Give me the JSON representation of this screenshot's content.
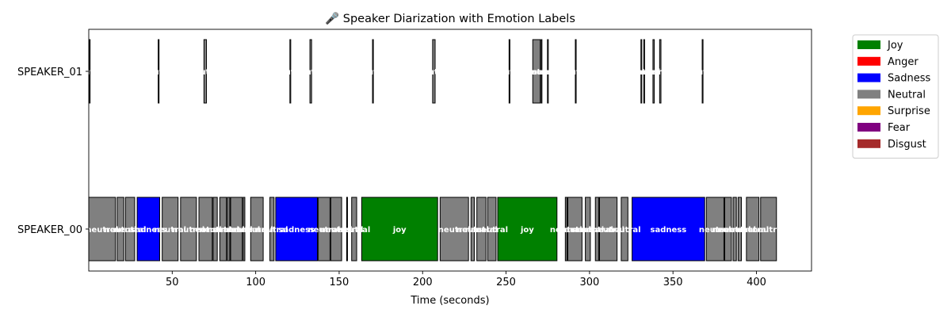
{
  "chart_data": {
    "type": "gantt",
    "title": "🎤 Speaker Diarization with Emotion Labels",
    "xlabel": "Time (seconds)",
    "ylabel": "",
    "xlim": [
      0,
      433
    ],
    "x_ticks": [
      50,
      100,
      150,
      200,
      250,
      300,
      350,
      400
    ],
    "categories": [
      "SPEAKER_00",
      "SPEAKER_01"
    ],
    "legend": {
      "placement": "outside-top-right",
      "items": [
        {
          "label": "Joy",
          "color": "#008000"
        },
        {
          "label": "Anger",
          "color": "#ff0000"
        },
        {
          "label": "Sadness",
          "color": "#0000ff"
        },
        {
          "label": "Neutral",
          "color": "#808080"
        },
        {
          "label": "Surprise",
          "color": "#ffa500"
        },
        {
          "label": "Fear",
          "color": "#800080"
        },
        {
          "label": "Disgust",
          "color": "#a52a2a"
        }
      ]
    },
    "segments": [
      {
        "speaker": "SPEAKER_00",
        "start": 0.0,
        "end": 16.0,
        "emotion": "neutral",
        "label": "neutral"
      },
      {
        "speaker": "SPEAKER_00",
        "start": 17.0,
        "end": 21.0,
        "emotion": "neutral",
        "label": "neutral"
      },
      {
        "speaker": "SPEAKER_00",
        "start": 22.0,
        "end": 27.5,
        "emotion": "neutral",
        "label": "neutral"
      },
      {
        "speaker": "SPEAKER_00",
        "start": 29.0,
        "end": 42.5,
        "emotion": "sadness",
        "label": "sadness"
      },
      {
        "speaker": "SPEAKER_00",
        "start": 44.0,
        "end": 53.5,
        "emotion": "neutral",
        "label": "neutral"
      },
      {
        "speaker": "SPEAKER_00",
        "start": 55.0,
        "end": 64.5,
        "emotion": "neutral",
        "label": "neutral"
      },
      {
        "speaker": "SPEAKER_00",
        "start": 66.0,
        "end": 74.0,
        "emotion": "neutral",
        "label": "neutral"
      },
      {
        "speaker": "SPEAKER_00",
        "start": 74.5,
        "end": 77.0,
        "emotion": "neutral",
        "label": "neutral"
      },
      {
        "speaker": "SPEAKER_00",
        "start": 78.5,
        "end": 82.5,
        "emotion": "neutral",
        "label": "neutral"
      },
      {
        "speaker": "SPEAKER_00",
        "start": 83.0,
        "end": 84.5,
        "emotion": "neutral",
        "label": "neutral"
      },
      {
        "speaker": "SPEAKER_00",
        "start": 85.0,
        "end": 92.0,
        "emotion": "neutral",
        "label": "neutral"
      },
      {
        "speaker": "SPEAKER_00",
        "start": 92.5,
        "end": 93.5,
        "emotion": "neutral",
        "label": "neutral"
      },
      {
        "speaker": "SPEAKER_00",
        "start": 97.0,
        "end": 104.5,
        "emotion": "neutral",
        "label": "neutral"
      },
      {
        "speaker": "SPEAKER_00",
        "start": 108.5,
        "end": 111.0,
        "emotion": "neutral",
        "label": "neutral"
      },
      {
        "speaker": "SPEAKER_00",
        "start": 112.0,
        "end": 137.0,
        "emotion": "sadness",
        "label": "sadness"
      },
      {
        "speaker": "SPEAKER_00",
        "start": 137.5,
        "end": 144.5,
        "emotion": "neutral",
        "label": "neutral"
      },
      {
        "speaker": "SPEAKER_00",
        "start": 145.0,
        "end": 151.5,
        "emotion": "neutral",
        "label": "neutral"
      },
      {
        "speaker": "SPEAKER_00",
        "start": 154.5,
        "end": 155.0,
        "emotion": "neutral",
        "label": "neutral"
      },
      {
        "speaker": "SPEAKER_00",
        "start": 157.5,
        "end": 160.5,
        "emotion": "neutral",
        "label": "neutral"
      },
      {
        "speaker": "SPEAKER_00",
        "start": 163.5,
        "end": 209.0,
        "emotion": "joy",
        "label": "joy"
      },
      {
        "speaker": "SPEAKER_00",
        "start": 210.5,
        "end": 227.5,
        "emotion": "neutral",
        "label": "neutral"
      },
      {
        "speaker": "SPEAKER_00",
        "start": 229.0,
        "end": 231.0,
        "emotion": "neutral",
        "label": "neutral"
      },
      {
        "speaker": "SPEAKER_00",
        "start": 232.5,
        "end": 238.0,
        "emotion": "neutral",
        "label": "neutral"
      },
      {
        "speaker": "SPEAKER_00",
        "start": 239.0,
        "end": 244.0,
        "emotion": "neutral",
        "label": "neutral"
      },
      {
        "speaker": "SPEAKER_00",
        "start": 245.0,
        "end": 280.5,
        "emotion": "joy",
        "label": "joy"
      },
      {
        "speaker": "SPEAKER_00",
        "start": 285.5,
        "end": 286.5,
        "emotion": "neutral",
        "label": "neutral"
      },
      {
        "speaker": "SPEAKER_00",
        "start": 287.0,
        "end": 295.5,
        "emotion": "neutral",
        "label": "neutral"
      },
      {
        "speaker": "SPEAKER_00",
        "start": 297.5,
        "end": 300.5,
        "emotion": "neutral",
        "label": "neutral"
      },
      {
        "speaker": "SPEAKER_00",
        "start": 303.5,
        "end": 305.5,
        "emotion": "neutral",
        "label": "neutral"
      },
      {
        "speaker": "SPEAKER_00",
        "start": 306.0,
        "end": 316.5,
        "emotion": "neutral",
        "label": "neutral"
      },
      {
        "speaker": "SPEAKER_00",
        "start": 319.0,
        "end": 323.0,
        "emotion": "neutral",
        "label": "neutral"
      },
      {
        "speaker": "SPEAKER_00",
        "start": 325.5,
        "end": 369.0,
        "emotion": "sadness",
        "label": "sadness"
      },
      {
        "speaker": "SPEAKER_00",
        "start": 370.0,
        "end": 380.5,
        "emotion": "neutral",
        "label": "neutral"
      },
      {
        "speaker": "SPEAKER_00",
        "start": 381.0,
        "end": 385.0,
        "emotion": "neutral",
        "label": "neutral"
      },
      {
        "speaker": "SPEAKER_00",
        "start": 386.0,
        "end": 388.0,
        "emotion": "neutral",
        "label": "neutral"
      },
      {
        "speaker": "SPEAKER_00",
        "start": 389.0,
        "end": 391.0,
        "emotion": "neutral",
        "label": "neutral"
      },
      {
        "speaker": "SPEAKER_00",
        "start": 394.0,
        "end": 401.5,
        "emotion": "neutral",
        "label": "neutral"
      },
      {
        "speaker": "SPEAKER_00",
        "start": 402.5,
        "end": 412.0,
        "emotion": "neutral",
        "label": "neutral"
      },
      {
        "speaker": "SPEAKER_01",
        "start": 0.3,
        "end": 0.8,
        "emotion": "neutral",
        "label": "neutral"
      },
      {
        "speaker": "SPEAKER_01",
        "start": 41.6,
        "end": 42.1,
        "emotion": "neutral",
        "label": "neutral"
      },
      {
        "speaker": "SPEAKER_01",
        "start": 69.0,
        "end": 70.5,
        "emotion": "neutral",
        "label": "neutral"
      },
      {
        "speaker": "SPEAKER_01",
        "start": 120.5,
        "end": 121.0,
        "emotion": "neutral",
        "label": "neutral"
      },
      {
        "speaker": "SPEAKER_01",
        "start": 132.5,
        "end": 133.5,
        "emotion": "neutral",
        "label": "neutral"
      },
      {
        "speaker": "SPEAKER_01",
        "start": 170.0,
        "end": 170.5,
        "emotion": "neutral",
        "label": "neutral"
      },
      {
        "speaker": "SPEAKER_01",
        "start": 206.0,
        "end": 207.5,
        "emotion": "neutral",
        "label": "neutral"
      },
      {
        "speaker": "SPEAKER_01",
        "start": 251.8,
        "end": 252.3,
        "emotion": "neutral",
        "label": "neutral"
      },
      {
        "speaker": "SPEAKER_01",
        "start": 266.0,
        "end": 270.5,
        "emotion": "neutral",
        "label": "neutral"
      },
      {
        "speaker": "SPEAKER_01",
        "start": 271.0,
        "end": 271.5,
        "emotion": "neutral",
        "label": "neutral"
      },
      {
        "speaker": "SPEAKER_01",
        "start": 274.8,
        "end": 275.3,
        "emotion": "neutral",
        "label": "neutral"
      },
      {
        "speaker": "SPEAKER_01",
        "start": 291.5,
        "end": 292.0,
        "emotion": "neutral",
        "label": "neutral"
      },
      {
        "speaker": "SPEAKER_01",
        "start": 330.8,
        "end": 331.3,
        "emotion": "neutral",
        "label": "neutral"
      },
      {
        "speaker": "SPEAKER_01",
        "start": 332.5,
        "end": 333.0,
        "emotion": "neutral",
        "label": "neutral"
      },
      {
        "speaker": "SPEAKER_01",
        "start": 338.0,
        "end": 338.8,
        "emotion": "neutral",
        "label": "neutral"
      },
      {
        "speaker": "SPEAKER_01",
        "start": 342.0,
        "end": 342.8,
        "emotion": "neutral",
        "label": "neutral"
      },
      {
        "speaker": "SPEAKER_01",
        "start": 367.5,
        "end": 368.0,
        "emotion": "neutral",
        "label": "neutral"
      }
    ]
  }
}
